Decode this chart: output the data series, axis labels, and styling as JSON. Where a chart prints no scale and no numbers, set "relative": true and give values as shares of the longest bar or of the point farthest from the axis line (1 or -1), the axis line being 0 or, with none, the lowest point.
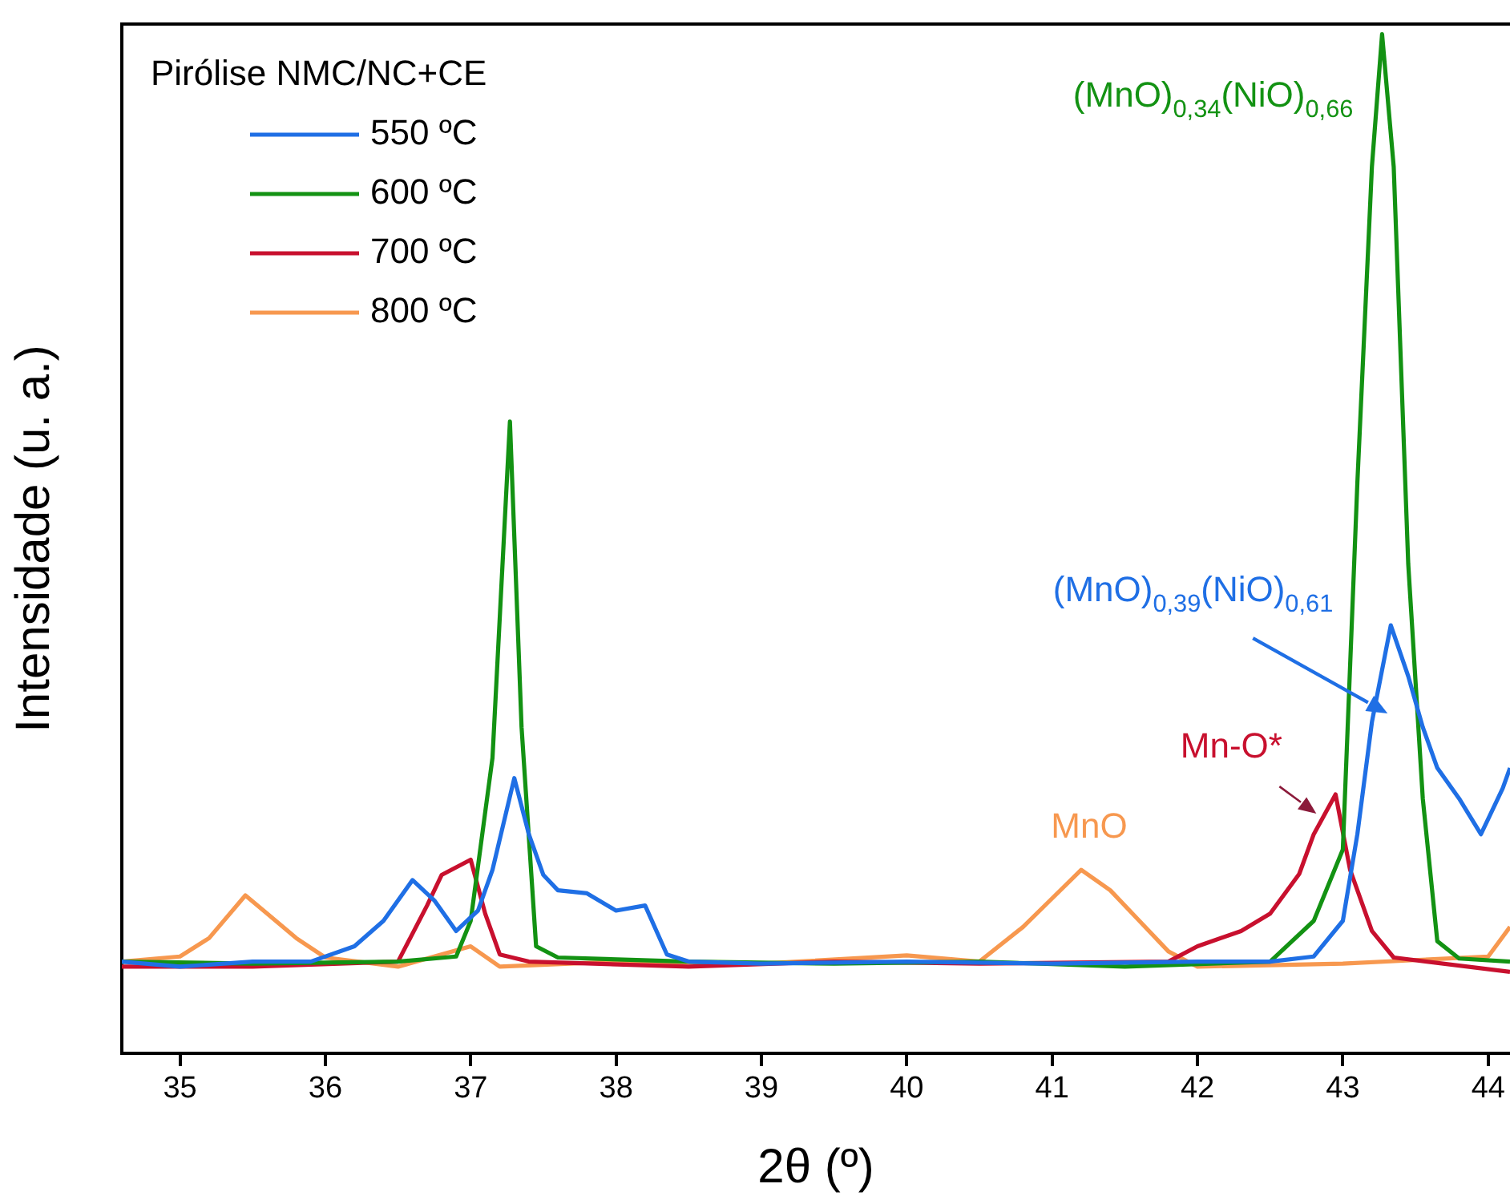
{
  "chart_data": {
    "type": "line",
    "relative": true,
    "xlabel": "2θ (º)",
    "ylabel": "Intensidade (u. a.)",
    "legend_title": "Pirólise NMC/NC+CE",
    "legend": "top left",
    "grid": false,
    "marker": "none",
    "line_style": "solid",
    "xlim": [
      34.6,
      44.15
    ],
    "xticks": [
      35,
      36,
      37,
      38,
      39,
      40,
      41,
      42,
      43,
      44
    ],
    "series": [
      {
        "name": "550 ºC",
        "color": "#1f6fe5",
        "x": [
          34.6,
          35.0,
          35.5,
          35.9,
          36.2,
          36.4,
          36.6,
          36.75,
          36.9,
          37.05,
          37.15,
          37.3,
          37.4,
          37.5,
          37.6,
          37.8,
          38.0,
          38.2,
          38.35,
          38.5,
          39.0,
          40.0,
          41.0,
          42.0,
          42.5,
          42.8,
          43.0,
          43.1,
          43.2,
          43.33,
          43.45,
          43.55,
          43.65,
          43.8,
          43.95,
          44.0,
          44.1,
          44.15
        ],
        "values": [
          0.09,
          0.085,
          0.09,
          0.09,
          0.105,
          0.13,
          0.17,
          0.15,
          0.12,
          0.14,
          0.18,
          0.27,
          0.215,
          0.175,
          0.16,
          0.157,
          0.14,
          0.145,
          0.097,
          0.09,
          0.088,
          0.09,
          0.088,
          0.09,
          0.09,
          0.095,
          0.13,
          0.215,
          0.325,
          0.42,
          0.37,
          0.32,
          0.28,
          0.25,
          0.215,
          0.23,
          0.26,
          0.28
        ]
      },
      {
        "name": "600 ºC",
        "color": "#139213",
        "x": [
          34.6,
          35.5,
          36.5,
          36.9,
          37.0,
          37.15,
          37.27,
          37.35,
          37.45,
          37.6,
          38.5,
          39.5,
          40.5,
          41.5,
          42.5,
          42.8,
          43.0,
          43.1,
          43.2,
          43.27,
          43.35,
          43.45,
          43.55,
          43.65,
          43.8,
          44.15
        ],
        "values": [
          0.09,
          0.088,
          0.09,
          0.095,
          0.13,
          0.29,
          0.62,
          0.32,
          0.105,
          0.094,
          0.09,
          0.088,
          0.09,
          0.085,
          0.09,
          0.13,
          0.2,
          0.56,
          0.87,
          1.0,
          0.87,
          0.48,
          0.25,
          0.11,
          0.093,
          0.09
        ]
      },
      {
        "name": "700 ºC",
        "color": "#c8102e",
        "x": [
          34.6,
          35.5,
          36.5,
          36.7,
          36.8,
          37.0,
          37.1,
          37.2,
          37.4,
          38.5,
          39.5,
          40.5,
          41.8,
          42.0,
          42.3,
          42.5,
          42.7,
          42.8,
          42.95,
          43.05,
          43.2,
          43.35,
          44.15
        ],
        "values": [
          0.085,
          0.085,
          0.09,
          0.145,
          0.175,
          0.19,
          0.137,
          0.097,
          0.09,
          0.085,
          0.09,
          0.088,
          0.09,
          0.105,
          0.12,
          0.137,
          0.176,
          0.215,
          0.254,
          0.18,
          0.12,
          0.094,
          0.08
        ]
      },
      {
        "name": "800 ºC",
        "color": "#f7984f",
        "x": [
          34.6,
          35.0,
          35.2,
          35.45,
          35.6,
          35.8,
          36.0,
          36.5,
          37.0,
          37.2,
          38.0,
          39.0,
          40.0,
          40.5,
          40.8,
          41.0,
          41.2,
          41.4,
          41.6,
          41.8,
          42.0,
          43.0,
          44.0,
          44.15
        ],
        "values": [
          0.09,
          0.095,
          0.113,
          0.155,
          0.137,
          0.113,
          0.094,
          0.085,
          0.105,
          0.085,
          0.09,
          0.088,
          0.096,
          0.09,
          0.124,
          0.152,
          0.18,
          0.16,
          0.13,
          0.1,
          0.085,
          0.088,
          0.095,
          0.124
        ]
      }
    ],
    "annotations": [
      {
        "text": "(MnO)$_{0,34}$(NiO)$_{0,66}$",
        "x": 43.27,
        "y": 1.0
      },
      {
        "text": "(MnO)$_{0,39}$(NiO)$_{0,61}$",
        "x": 43.33,
        "y": 0.42
      },
      {
        "text": "Mn-O*",
        "x": 42.95,
        "y": 0.254
      },
      {
        "text": "MnO",
        "x": 41.2,
        "y": 0.18
      }
    ]
  }
}
